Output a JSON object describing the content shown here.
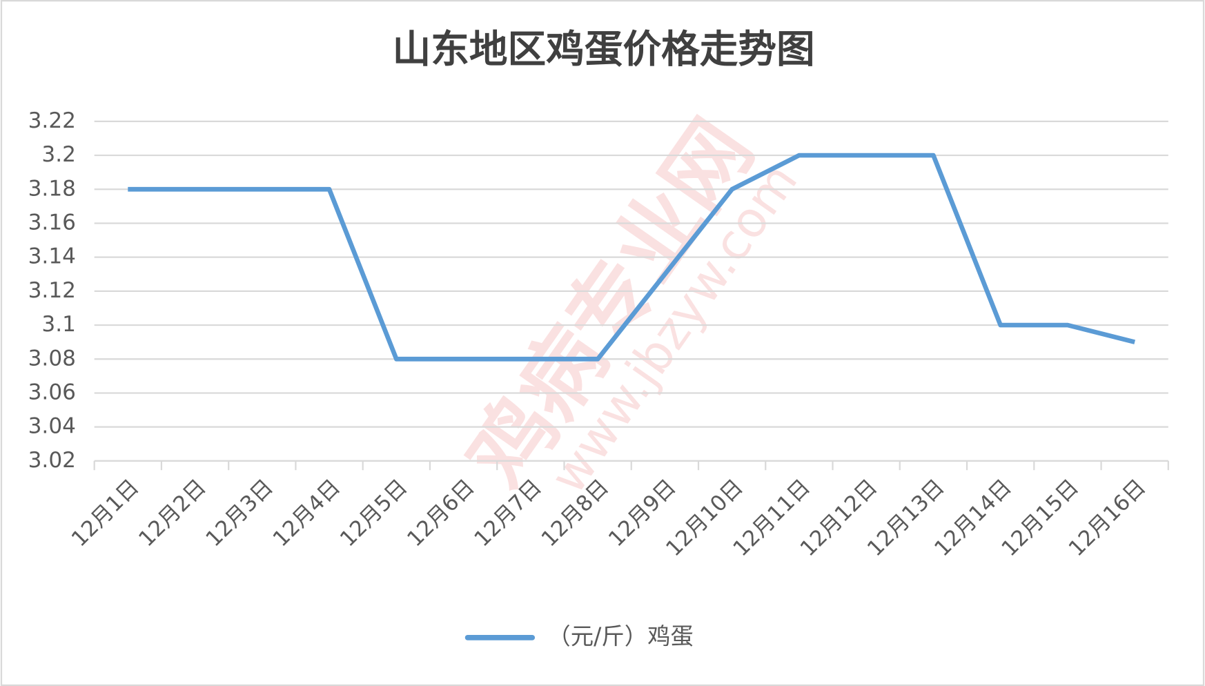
{
  "chart_data": {
    "type": "line",
    "title": "山东地区鸡蛋价格走势图",
    "categories": [
      "12月1日",
      "12月2日",
      "12月3日",
      "12月4日",
      "12月5日",
      "12月6日",
      "12月7日",
      "12月8日",
      "12月9日",
      "12月10日",
      "12月11日",
      "12月12日",
      "12月13日",
      "12月14日",
      "12月15日",
      "12月16日"
    ],
    "series": [
      {
        "name": "（元/斤）鸡蛋",
        "color": "#5b9bd5",
        "values": [
          3.18,
          3.18,
          3.18,
          3.18,
          3.08,
          3.08,
          3.08,
          3.08,
          3.13,
          3.18,
          3.2,
          3.2,
          3.2,
          3.1,
          3.1,
          3.09
        ]
      }
    ],
    "ylim": [
      3.02,
      3.22
    ],
    "yticks": [
      3.02,
      3.04,
      3.06,
      3.08,
      3.1,
      3.12,
      3.14,
      3.16,
      3.18,
      3.2,
      3.22
    ],
    "grid": true,
    "legend": "bottom",
    "watermark": [
      "鸡病专业网",
      "www.jbzyw.com"
    ]
  }
}
